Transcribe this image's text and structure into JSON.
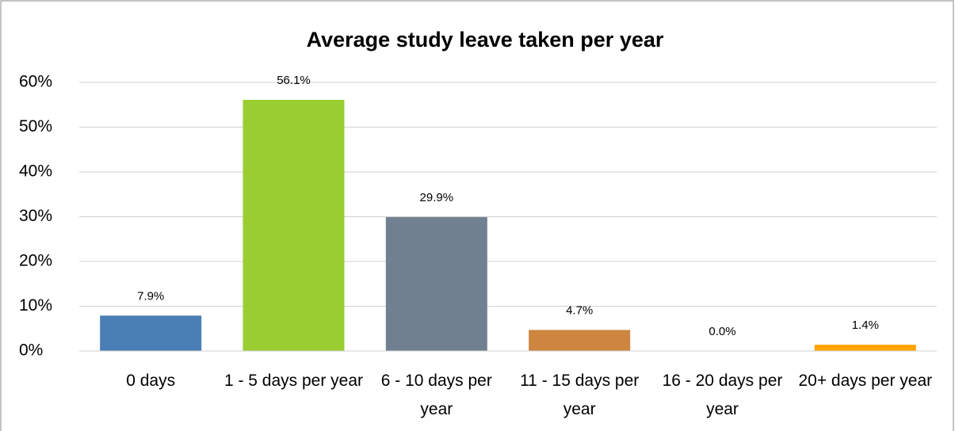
{
  "chart_data": {
    "type": "bar",
    "title": "Average study leave taken per year",
    "categories": [
      "0 days",
      "1 - 5 days per year",
      "6 - 10 days per year",
      "11 - 15 days per year",
      "16 - 20 days per year",
      "20+ days per year"
    ],
    "values": [
      7.9,
      56.1,
      29.9,
      4.7,
      0.0,
      1.4
    ],
    "value_labels": [
      "7.9%",
      "56.1%",
      "29.9%",
      "4.7%",
      "0.0%",
      "1.4%"
    ],
    "colors": [
      "#4a7fb5",
      "#9acd32",
      "#708090",
      "#cd853f",
      "#8064a2",
      "#ffa500"
    ],
    "ylim": [
      0,
      60
    ],
    "yticks": [
      {
        "value": 0,
        "label": "0%"
      },
      {
        "value": 10,
        "label": "10%"
      },
      {
        "value": 20,
        "label": "20%"
      },
      {
        "value": 30,
        "label": "30%"
      },
      {
        "value": 40,
        "label": "40%"
      },
      {
        "value": 50,
        "label": "50%"
      },
      {
        "value": 60,
        "label": "60%"
      }
    ],
    "grid": true
  }
}
